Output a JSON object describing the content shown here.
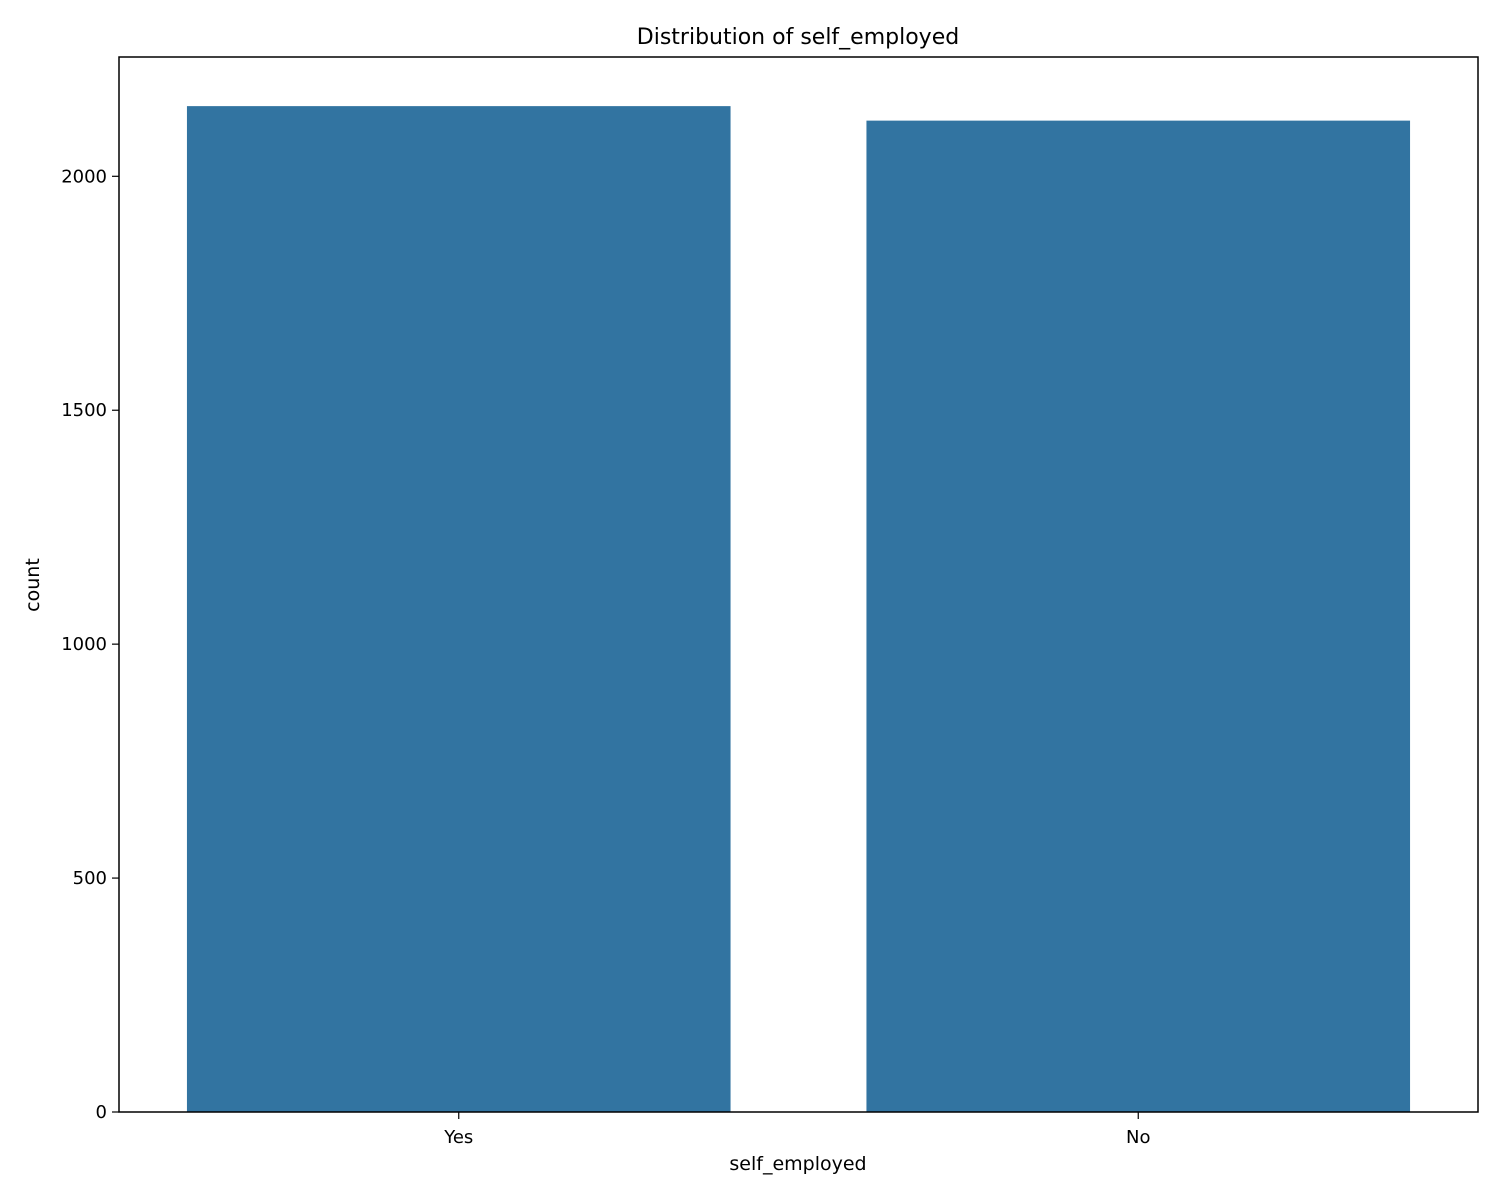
{
  "chart_data": {
    "type": "bar",
    "title": "Distribution of  self_employed",
    "xlabel": "self_employed",
    "ylabel": "count",
    "categories": [
      "Yes",
      "No"
    ],
    "values": [
      2150,
      2119
    ],
    "ylim": [
      0,
      2255
    ],
    "yticks": [
      0,
      500,
      1000,
      1500,
      2000
    ],
    "grid": false,
    "legend": "none",
    "bar_color": "#3274a1"
  }
}
